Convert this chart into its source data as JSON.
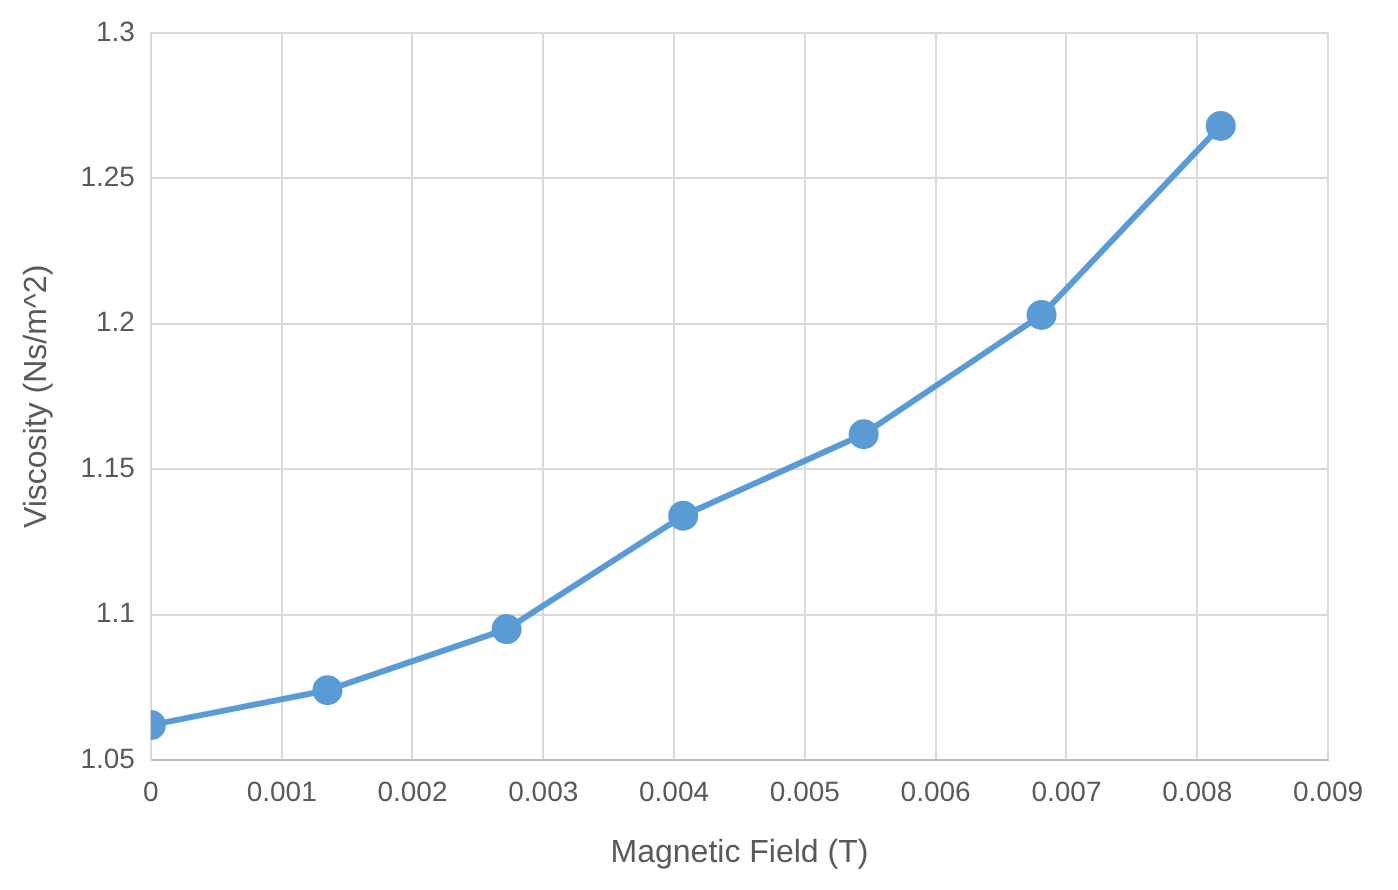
{
  "chart_data": {
    "type": "line",
    "xlabel": "Magnetic Field (T)",
    "ylabel": "Viscosity (Ns/m^2)",
    "x": [
      0,
      0.00135,
      0.00272,
      0.00407,
      0.00545,
      0.00681,
      0.00818
    ],
    "series": [
      {
        "color": "#5b9bd5",
        "values": [
          1.062,
          1.074,
          1.095,
          1.134,
          1.162,
          1.203,
          1.268
        ]
      }
    ],
    "xlim": [
      0,
      0.009
    ],
    "xticks": [
      0,
      0.001,
      0.002,
      0.003,
      0.004,
      0.005,
      0.006,
      0.007,
      0.008,
      0.009
    ],
    "ylim": [
      1.05,
      1.3
    ],
    "yticks": [
      1.05,
      1.1,
      1.15,
      1.2,
      1.25,
      1.3
    ],
    "grid": true,
    "legend": false,
    "marker": "circle",
    "line_style": "solid"
  }
}
